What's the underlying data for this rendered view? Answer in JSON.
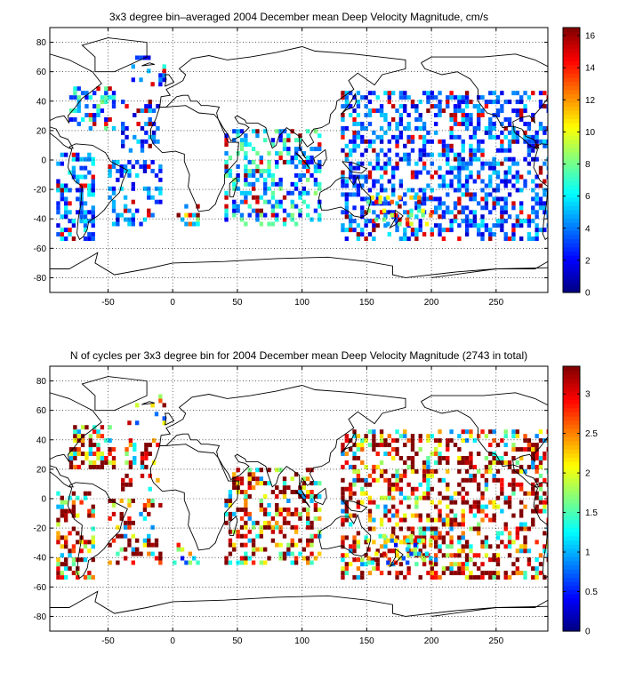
{
  "chart_data": [
    {
      "type": "heatmap",
      "title": "3x3 degree bin–averaged 2004 December mean Deep Velocity Magnitude, cm/s",
      "xlim": [
        -95,
        290
      ],
      "ylim": [
        -90,
        90
      ],
      "xticks": [
        -50,
        0,
        50,
        100,
        150,
        200,
        250
      ],
      "yticks": [
        -80,
        -60,
        -40,
        -20,
        0,
        20,
        40,
        60,
        80
      ],
      "grid": true,
      "colorbar": {
        "clim": [
          0,
          16.5
        ],
        "ticks": [
          0,
          2,
          4,
          6,
          8,
          10,
          12,
          14,
          16
        ],
        "colormap": "jet"
      },
      "bin_size_deg": 3,
      "regions": [
        {
          "lon": [
            -80,
            -45
          ],
          "lat": [
            20,
            50
          ],
          "density": 0.45,
          "mean": 5
        },
        {
          "lon": [
            -90,
            -60
          ],
          "lat": [
            -55,
            5
          ],
          "density": 0.45,
          "mean": 4
        },
        {
          "lon": [
            -50,
            -10
          ],
          "lat": [
            -45,
            0
          ],
          "density": 0.35,
          "mean": 3.5
        },
        {
          "lon": [
            -40,
            -10
          ],
          "lat": [
            5,
            40
          ],
          "density": 0.3,
          "mean": 3.5
        },
        {
          "lon": [
            -35,
            -5
          ],
          "lat": [
            50,
            70
          ],
          "density": 0.15,
          "mean": 4
        },
        {
          "lon": [
            0,
            20
          ],
          "lat": [
            -45,
            -30
          ],
          "density": 0.4,
          "mean": 12
        },
        {
          "lon": [
            40,
            115
          ],
          "lat": [
            -45,
            20
          ],
          "density": 0.4,
          "mean": 5
        },
        {
          "lon": [
            130,
            290
          ],
          "lat": [
            -55,
            45
          ],
          "density": 0.42,
          "mean": 3.5
        },
        {
          "lon": [
            150,
            200
          ],
          "lat": [
            -45,
            -25
          ],
          "density": 0.3,
          "mean": 9
        }
      ]
    },
    {
      "type": "heatmap",
      "title": "N of cycles per 3x3 degree bin for 2004 December mean Deep Velocity Magnitude (2743 in total)",
      "total_cycles": 2743,
      "xlim": [
        -95,
        290
      ],
      "ylim": [
        -90,
        90
      ],
      "xticks": [
        -50,
        0,
        50,
        100,
        150,
        200,
        250
      ],
      "yticks": [
        -80,
        -60,
        -40,
        -20,
        0,
        20,
        40,
        60,
        80
      ],
      "grid": true,
      "colorbar": {
        "clim": [
          0,
          3.35
        ],
        "ticks": [
          0,
          0.5,
          1,
          1.5,
          2,
          2.5,
          3
        ],
        "colormap": "jet"
      },
      "bin_size_deg": 3,
      "regions": [
        {
          "lon": [
            -80,
            -45
          ],
          "lat": [
            20,
            50
          ],
          "density": 0.45,
          "mean": 3
        },
        {
          "lon": [
            -90,
            -60
          ],
          "lat": [
            -55,
            5
          ],
          "density": 0.45,
          "mean": 2.8
        },
        {
          "lon": [
            -50,
            -10
          ],
          "lat": [
            -45,
            0
          ],
          "density": 0.35,
          "mean": 2.8
        },
        {
          "lon": [
            -40,
            -10
          ],
          "lat": [
            5,
            40
          ],
          "density": 0.3,
          "mean": 2.8
        },
        {
          "lon": [
            -35,
            -5
          ],
          "lat": [
            50,
            70
          ],
          "density": 0.15,
          "mean": 2
        },
        {
          "lon": [
            0,
            20
          ],
          "lat": [
            -45,
            -30
          ],
          "density": 0.4,
          "mean": 1.5
        },
        {
          "lon": [
            40,
            115
          ],
          "lat": [
            -45,
            20
          ],
          "density": 0.4,
          "mean": 2.8
        },
        {
          "lon": [
            130,
            290
          ],
          "lat": [
            -55,
            45
          ],
          "density": 0.42,
          "mean": 2.8
        },
        {
          "lon": [
            150,
            200
          ],
          "lat": [
            -45,
            -25
          ],
          "density": 0.3,
          "mean": 1.5
        }
      ]
    }
  ]
}
